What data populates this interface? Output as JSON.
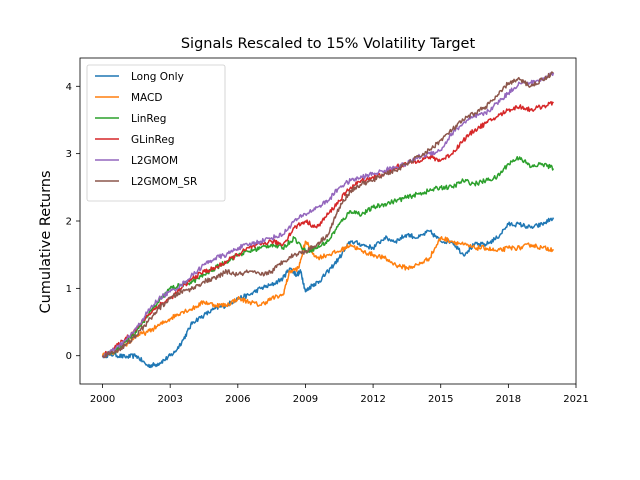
{
  "chart_data": {
    "type": "line",
    "title": "Signals Rescaled to 15% Volatility Target",
    "xlabel": "",
    "ylabel": "Cumulative Returns",
    "xlim": [
      1999.0,
      2021.0
    ],
    "ylim": [
      -0.42,
      4.42
    ],
    "xticks": [
      2000,
      2003,
      2006,
      2009,
      2012,
      2015,
      2018,
      2021
    ],
    "yticks": [
      0,
      1,
      2,
      3,
      4
    ],
    "grid": false,
    "legend_position": "top-left",
    "series": [
      {
        "name": "Long Only",
        "color": "#1f77b4",
        "x": [
          2000,
          2000.5,
          2001,
          2001.5,
          2002,
          2002.4,
          2002.8,
          2003.2,
          2003.6,
          2004,
          2004.5,
          2005,
          2005.5,
          2006,
          2006.5,
          2007,
          2007.5,
          2008,
          2008.3,
          2008.6,
          2008.8,
          2009,
          2009.3,
          2009.6,
          2010,
          2010.5,
          2011,
          2011.5,
          2012,
          2012.5,
          2013,
          2013.5,
          2014,
          2014.5,
          2015,
          2015.5,
          2016,
          2016.5,
          2017,
          2017.5,
          2018,
          2018.5,
          2019,
          2019.5,
          2020
        ],
        "y": [
          0,
          0.02,
          -0.02,
          0.0,
          -0.15,
          -0.13,
          -0.05,
          0.05,
          0.25,
          0.5,
          0.6,
          0.7,
          0.75,
          0.85,
          0.9,
          1.0,
          1.05,
          1.15,
          1.3,
          1.2,
          1.25,
          0.95,
          1.05,
          1.1,
          1.25,
          1.45,
          1.7,
          1.65,
          1.6,
          1.75,
          1.7,
          1.8,
          1.75,
          1.85,
          1.7,
          1.7,
          1.5,
          1.65,
          1.65,
          1.75,
          1.95,
          1.95,
          1.9,
          1.95,
          2.05
        ]
      },
      {
        "name": "MACD",
        "color": "#ff7f0e",
        "x": [
          2000,
          2000.5,
          2001,
          2001.5,
          2002,
          2002.5,
          2003,
          2003.5,
          2004,
          2004.5,
          2005,
          2005.5,
          2006,
          2006.5,
          2007,
          2007.5,
          2008,
          2008.3,
          2008.7,
          2009,
          2009.5,
          2010,
          2010.5,
          2011,
          2011.5,
          2012,
          2012.5,
          2013,
          2013.5,
          2014,
          2014.5,
          2015,
          2015.5,
          2016,
          2016.5,
          2017,
          2017.5,
          2018,
          2018.5,
          2019,
          2019.5,
          2020
        ],
        "y": [
          0,
          0.05,
          0.15,
          0.3,
          0.35,
          0.45,
          0.55,
          0.65,
          0.7,
          0.8,
          0.75,
          0.75,
          0.85,
          0.8,
          0.75,
          0.85,
          0.9,
          1.25,
          1.3,
          1.7,
          1.45,
          1.5,
          1.55,
          1.65,
          1.55,
          1.5,
          1.45,
          1.35,
          1.3,
          1.35,
          1.45,
          1.75,
          1.7,
          1.65,
          1.6,
          1.6,
          1.55,
          1.6,
          1.6,
          1.65,
          1.6,
          1.58
        ]
      },
      {
        "name": "LinReg",
        "color": "#2ca02c",
        "x": [
          2000,
          2000.5,
          2001,
          2001.5,
          2002,
          2002.5,
          2003,
          2003.5,
          2004,
          2004.5,
          2005,
          2005.5,
          2006,
          2006.5,
          2007,
          2007.5,
          2008,
          2008.5,
          2009,
          2009.5,
          2010,
          2010.5,
          2011,
          2011.5,
          2012,
          2012.5,
          2013,
          2013.5,
          2014,
          2014.5,
          2015,
          2015.5,
          2016,
          2016.5,
          2017,
          2017.5,
          2018,
          2018.5,
          2019,
          2019.5,
          2020
        ],
        "y": [
          0,
          0.05,
          0.2,
          0.35,
          0.6,
          0.8,
          1.0,
          1.05,
          1.1,
          1.2,
          1.3,
          1.4,
          1.5,
          1.55,
          1.6,
          1.65,
          1.6,
          1.75,
          1.55,
          1.6,
          1.7,
          1.95,
          2.15,
          2.1,
          2.2,
          2.25,
          2.3,
          2.35,
          2.4,
          2.45,
          2.5,
          2.5,
          2.6,
          2.55,
          2.6,
          2.65,
          2.85,
          2.95,
          2.8,
          2.85,
          2.78
        ]
      },
      {
        "name": "GLinReg",
        "color": "#d62728",
        "x": [
          2000,
          2000.5,
          2001,
          2001.5,
          2002,
          2002.5,
          2003,
          2003.5,
          2004,
          2004.5,
          2005,
          2005.5,
          2006,
          2006.5,
          2007,
          2007.5,
          2008,
          2008.5,
          2009,
          2009.5,
          2010,
          2010.5,
          2011,
          2011.5,
          2012,
          2012.5,
          2013,
          2013.5,
          2014,
          2014.5,
          2015,
          2015.5,
          2016,
          2016.5,
          2017,
          2017.5,
          2018,
          2018.5,
          2019,
          2019.5,
          2020
        ],
        "y": [
          0,
          0.1,
          0.25,
          0.4,
          0.6,
          0.75,
          0.85,
          1.0,
          1.15,
          1.25,
          1.3,
          1.4,
          1.5,
          1.6,
          1.65,
          1.7,
          1.65,
          1.9,
          2.0,
          1.9,
          2.1,
          2.3,
          2.5,
          2.6,
          2.65,
          2.7,
          2.8,
          2.85,
          2.9,
          2.95,
          2.9,
          3.0,
          3.2,
          3.35,
          3.45,
          3.55,
          3.65,
          3.7,
          3.65,
          3.7,
          3.75
        ]
      },
      {
        "name": "L2GMOM",
        "color": "#9467bd",
        "x": [
          2000,
          2000.5,
          2001,
          2001.5,
          2002,
          2002.5,
          2003,
          2003.5,
          2004,
          2004.5,
          2005,
          2005.5,
          2006,
          2006.5,
          2007,
          2007.5,
          2008,
          2008.5,
          2009,
          2009.5,
          2010,
          2010.5,
          2011,
          2011.5,
          2012,
          2012.5,
          2013,
          2013.5,
          2014,
          2014.5,
          2015,
          2015.5,
          2016,
          2016.5,
          2017,
          2017.5,
          2018,
          2018.5,
          2019,
          2019.5,
          2020
        ],
        "y": [
          0,
          0.08,
          0.22,
          0.4,
          0.65,
          0.85,
          0.95,
          1.05,
          1.2,
          1.35,
          1.45,
          1.5,
          1.6,
          1.65,
          1.7,
          1.75,
          1.8,
          2.0,
          2.1,
          2.2,
          2.3,
          2.5,
          2.6,
          2.65,
          2.7,
          2.75,
          2.8,
          2.85,
          2.95,
          3.0,
          3.05,
          3.3,
          3.45,
          3.55,
          3.6,
          3.75,
          3.9,
          4.05,
          4.05,
          4.1,
          4.2
        ]
      },
      {
        "name": "L2GMOM_SR",
        "color": "#8c564b",
        "x": [
          2000,
          2000.5,
          2001,
          2001.5,
          2002,
          2002.5,
          2003,
          2003.5,
          2004,
          2004.5,
          2005,
          2005.5,
          2006,
          2006.5,
          2007,
          2007.5,
          2008,
          2008.5,
          2009,
          2009.5,
          2010,
          2010.5,
          2011,
          2011.5,
          2012,
          2012.5,
          2013,
          2013.5,
          2014,
          2014.5,
          2015,
          2015.5,
          2016,
          2016.5,
          2017,
          2017.5,
          2018,
          2018.5,
          2019,
          2019.5,
          2020
        ],
        "y": [
          0,
          0.05,
          0.15,
          0.3,
          0.5,
          0.7,
          0.85,
          0.95,
          1.0,
          1.1,
          1.15,
          1.25,
          1.2,
          1.25,
          1.2,
          1.25,
          1.4,
          1.5,
          1.55,
          1.65,
          1.8,
          2.2,
          2.45,
          2.55,
          2.6,
          2.7,
          2.75,
          2.85,
          2.95,
          3.05,
          3.2,
          3.35,
          3.5,
          3.6,
          3.7,
          3.85,
          4.05,
          4.1,
          4.0,
          4.1,
          4.2
        ]
      }
    ]
  }
}
